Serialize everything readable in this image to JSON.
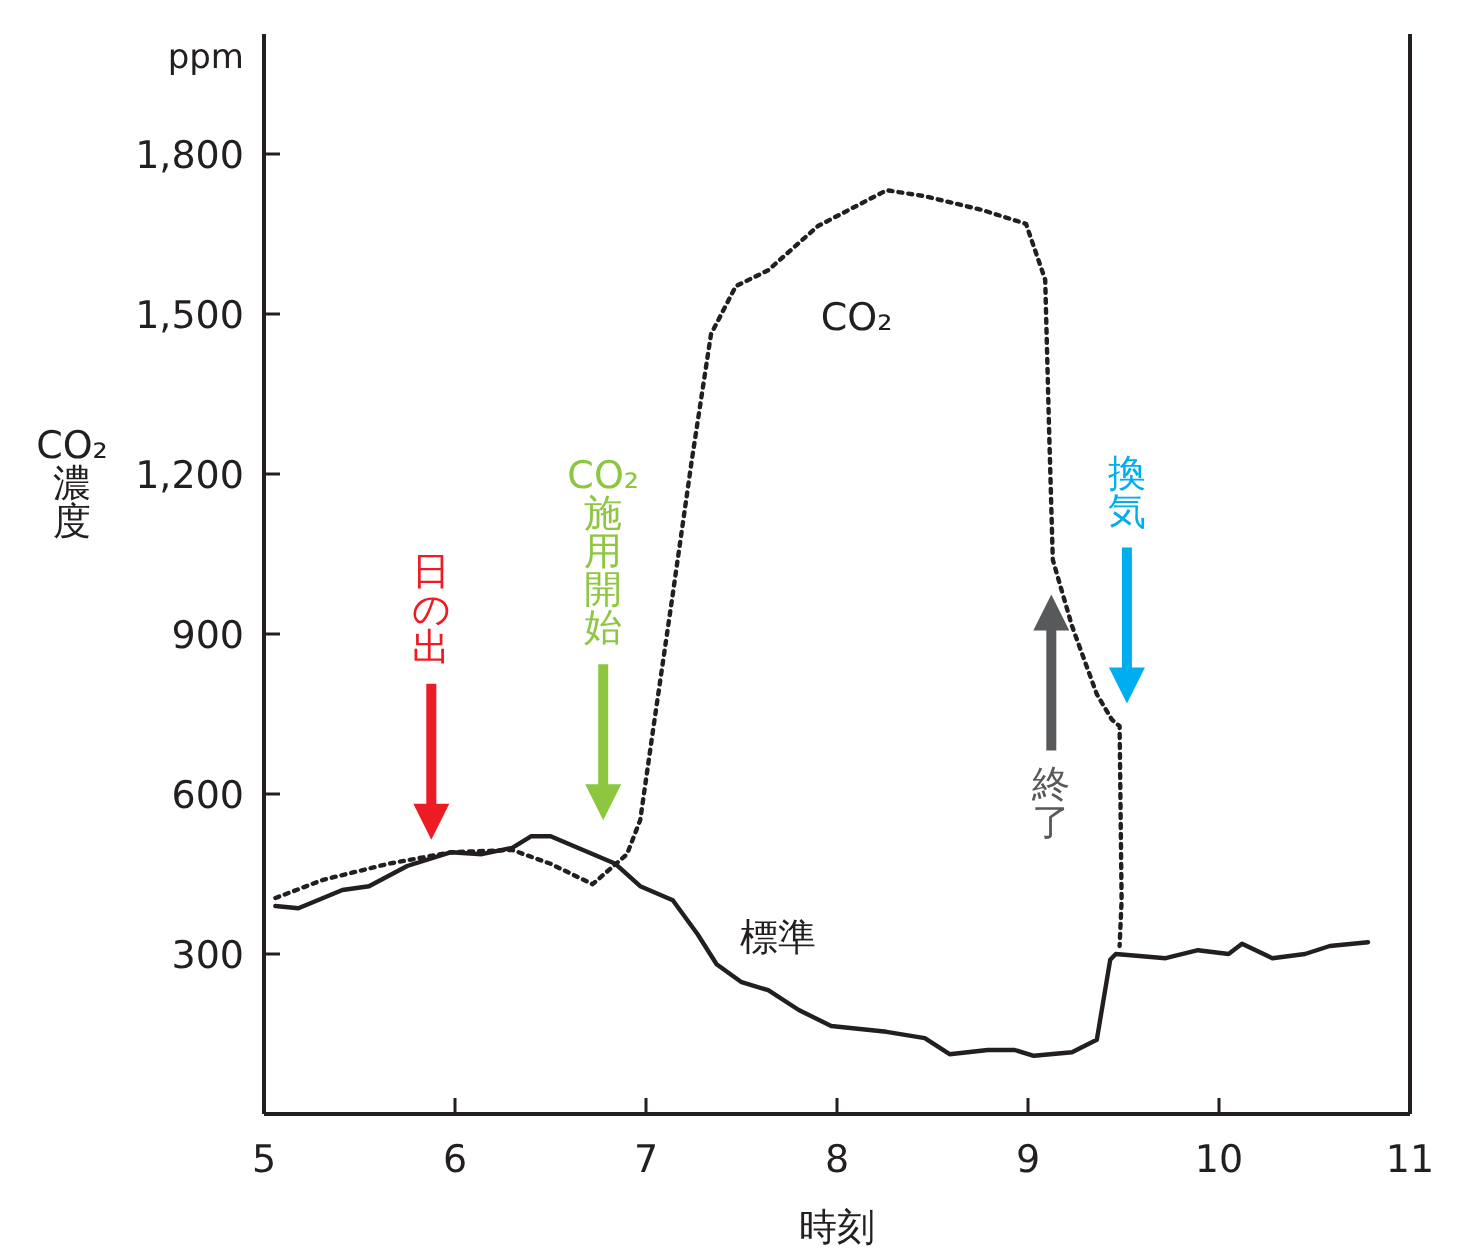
{
  "chart_data": {
    "type": "line",
    "xlabel": "時刻",
    "ylabel": "CO₂濃度",
    "xlim": [
      5,
      11
    ],
    "xticks": [
      5,
      6,
      7,
      8,
      9,
      10,
      11
    ],
    "ylim": [
      0,
      2025
    ],
    "yticks": [
      {
        "value": 300,
        "label": "300"
      },
      {
        "value": 600,
        "label": "600"
      },
      {
        "value": 900,
        "label": "900"
      },
      {
        "value": 1200,
        "label": "1,200"
      },
      {
        "value": 1500,
        "label": "1,500"
      },
      {
        "value": 1800,
        "label": "1,800"
      }
    ],
    "grid": false,
    "legend": false,
    "marker": "none",
    "series": [
      {
        "name": "標準",
        "color": "#231f20",
        "line_style": "solid",
        "x": [
          5.06,
          5.18,
          5.41,
          5.55,
          5.75,
          5.98,
          6.14,
          6.3,
          6.4,
          6.5,
          6.67,
          6.84,
          6.97,
          7.14,
          7.27,
          7.37,
          7.5,
          7.64,
          7.8,
          7.97,
          8.26,
          8.46,
          8.59,
          8.79,
          8.93,
          9.03,
          9.23,
          9.36,
          9.43,
          9.46,
          9.72,
          9.89,
          10.05,
          10.12,
          10.28,
          10.45,
          10.58,
          10.78
        ],
        "values": [
          390,
          386,
          420,
          427,
          465,
          491,
          487,
          499,
          521,
          521,
          495,
          469,
          427,
          401,
          337,
          281,
          247,
          232,
          195,
          165,
          154,
          142,
          112,
          120,
          120,
          109,
          116,
          139,
          289,
          300,
          292,
          307,
          300,
          319,
          292,
          300,
          315,
          322
        ]
      },
      {
        "name": "CO₂",
        "color": "#231f20",
        "line_style": "dotted",
        "x": [
          5.06,
          5.31,
          5.65,
          5.98,
          6.3,
          6.5,
          6.72,
          6.9,
          6.97,
          7.04,
          7.14,
          7.24,
          7.34,
          7.47,
          7.64,
          7.9,
          8.26,
          8.46,
          8.76,
          8.99,
          9.09,
          9.11,
          9.13,
          9.23,
          9.36,
          9.44,
          9.48,
          9.49,
          9.48
        ],
        "values": [
          405,
          439,
          469,
          491,
          495,
          469,
          431,
          487,
          551,
          727,
          975,
          1226,
          1462,
          1552,
          1582,
          1665,
          1732,
          1721,
          1695,
          1669,
          1564,
          1290,
          1039,
          915,
          787,
          739,
          727,
          401,
          315
        ]
      }
    ],
    "annotations": [
      "ppm",
      "日の出",
      "CO₂施用開始",
      "終了",
      "換気"
    ]
  }
}
